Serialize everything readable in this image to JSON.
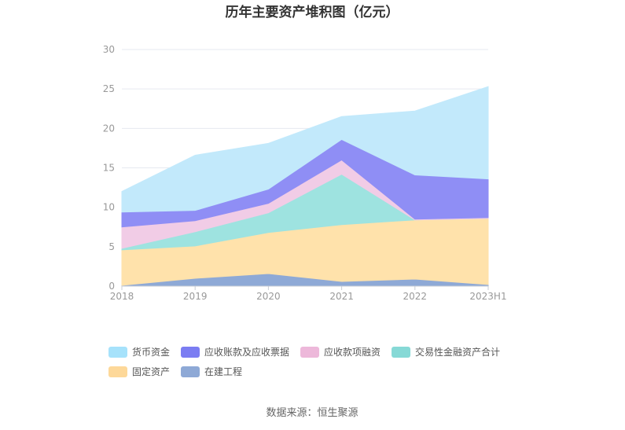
{
  "chart_data": {
    "type": "area",
    "stacked": true,
    "title": "历年主要资产堆积图（亿元）",
    "categories": [
      "2018",
      "2019",
      "2020",
      "2021",
      "2022",
      "2023H1"
    ],
    "ylim": [
      0,
      30
    ],
    "yticks": [
      0,
      5,
      10,
      15,
      20,
      25,
      30
    ],
    "grid": true,
    "legend_position": "bottom",
    "series": [
      {
        "name": "在建工程",
        "color": "#8ea9d6",
        "values": [
          0.1,
          1.0,
          1.6,
          0.6,
          0.9,
          0.2
        ]
      },
      {
        "name": "固定资产",
        "color": "#ffe2ab",
        "values": [
          4.5,
          4.1,
          5.2,
          7.2,
          7.5,
          8.4
        ]
      },
      {
        "name": "交易性金融资产合计",
        "color": "#9ee3e0",
        "values": [
          0.2,
          1.8,
          2.5,
          6.4,
          0.0,
          0.0
        ]
      },
      {
        "name": "应收款项融资",
        "color": "#f1cce6",
        "values": [
          2.7,
          1.4,
          1.2,
          1.8,
          0.1,
          0.1
        ]
      },
      {
        "name": "应收账款及应收票据",
        "color": "#8f8ef5",
        "values": [
          1.9,
          1.3,
          1.8,
          2.6,
          5.6,
          4.9
        ]
      },
      {
        "name": "货币资金",
        "color": "#c2e9fb",
        "values": [
          2.6,
          7.0,
          5.8,
          2.9,
          8.1,
          11.7
        ]
      }
    ],
    "legend_order": [
      "货币资金",
      "应收账款及应收票据",
      "应收款项融资",
      "交易性金融资产合计",
      "固定资产",
      "在建工程"
    ],
    "legend_colors": {
      "货币资金": "#a6e2fb",
      "应收账款及应收票据": "#7b7df2",
      "应收款项融资": "#edb8da",
      "交易性金融资产合计": "#86d9d6",
      "固定资产": "#fdd899",
      "在建工程": "#8ea9d6"
    }
  },
  "source": "数据来源：恒生聚源"
}
